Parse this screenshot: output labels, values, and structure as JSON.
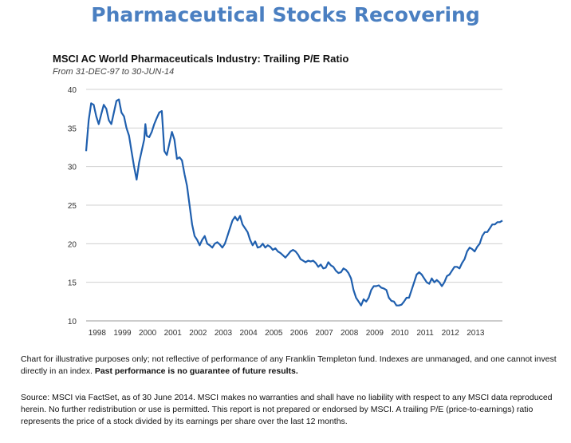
{
  "header": {
    "title": "Pharmaceutical Stocks Recovering"
  },
  "chart_data": {
    "type": "line",
    "title": "MSCI AC World Pharmaceuticals Industry: Trailing P/E Ratio",
    "subtitle": "From 31-DEC-97 to 30-JUN-14",
    "xlabel": "",
    "ylabel": "",
    "ylim": [
      10,
      40
    ],
    "yticks": [
      10,
      15,
      20,
      25,
      30,
      35,
      40
    ],
    "xlim": [
      1997.5,
      2014.5
    ],
    "xtick_labels": [
      "1998",
      "1999",
      "2000",
      "2001",
      "2002",
      "2003",
      "2004",
      "2005",
      "2006",
      "2007",
      "2008",
      "2009",
      "2010",
      "2011",
      "2012",
      "2013"
    ],
    "grid": "horizontal",
    "line_color": "#1f5fae",
    "series": [
      {
        "x": [
          1998.0,
          1998.1,
          1998.2,
          1998.3,
          1998.4,
          1998.5,
          1998.6,
          1998.7,
          1998.8,
          1998.9,
          1999.0,
          1999.1,
          1999.2,
          1999.3,
          1999.4,
          1999.5,
          1999.6,
          1999.7,
          1999.8,
          1999.9,
          2000.0,
          2000.1,
          2000.2,
          2000.3,
          2000.35,
          2000.4,
          2000.5,
          2000.6,
          2000.7,
          2000.8,
          2000.9,
          2001.0,
          2001.1,
          2001.2,
          2001.3,
          2001.4,
          2001.5,
          2001.6,
          2001.7,
          2001.8,
          2001.9,
          2002.0,
          2002.1,
          2002.2,
          2002.3,
          2002.4,
          2002.5,
          2002.6,
          2002.7,
          2002.8,
          2002.9,
          2003.0,
          2003.1,
          2003.2,
          2003.3,
          2003.4,
          2003.5,
          2003.6,
          2003.7,
          2003.8,
          2003.9,
          2004.0,
          2004.1,
          2004.2,
          2004.3,
          2004.4,
          2004.5,
          2004.6,
          2004.7,
          2004.8,
          2004.9,
          2005.0,
          2005.1,
          2005.2,
          2005.3,
          2005.4,
          2005.5,
          2005.6,
          2005.7,
          2005.8,
          2005.9,
          2006.0,
          2006.1,
          2006.2,
          2006.3,
          2006.4,
          2006.5,
          2006.6,
          2006.7,
          2006.8,
          2006.9,
          2007.0,
          2007.1,
          2007.2,
          2007.3,
          2007.4,
          2007.5,
          2007.6,
          2007.7,
          2007.8,
          2007.9,
          2008.0,
          2008.1,
          2008.2,
          2008.3,
          2008.4,
          2008.5,
          2008.6,
          2008.7,
          2008.8,
          2008.9,
          2009.0,
          2009.1,
          2009.2,
          2009.3,
          2009.4,
          2009.5,
          2009.6,
          2009.7,
          2009.8,
          2009.9,
          2010.0,
          2010.1,
          2010.2,
          2010.3,
          2010.4,
          2010.5,
          2010.6,
          2010.7,
          2010.8,
          2010.9,
          2011.0,
          2011.1,
          2011.2,
          2011.3,
          2011.4,
          2011.5,
          2011.6,
          2011.7,
          2011.8,
          2011.9,
          2012.0,
          2012.1,
          2012.2,
          2012.3,
          2012.4,
          2012.5,
          2012.6,
          2012.7,
          2012.8,
          2012.9,
          2013.0,
          2013.1,
          2013.2,
          2013.3,
          2013.4,
          2013.5,
          2013.6,
          2013.7,
          2013.8,
          2013.9,
          2014.0,
          2014.1,
          2014.2,
          2014.3,
          2014.4,
          2014.5
        ],
        "y": [
          32.0,
          36.0,
          38.2,
          38.0,
          36.5,
          35.5,
          36.8,
          38.0,
          37.5,
          36.0,
          35.5,
          37.0,
          38.5,
          38.7,
          37.0,
          36.5,
          35.0,
          34.0,
          32.0,
          30.0,
          28.3,
          30.5,
          32.0,
          33.5,
          35.5,
          34.0,
          33.8,
          34.5,
          35.5,
          36.3,
          37.0,
          37.2,
          32.0,
          31.5,
          33.0,
          34.5,
          33.5,
          31.0,
          31.2,
          30.8,
          29.0,
          27.5,
          25.0,
          22.5,
          21.0,
          20.5,
          19.8,
          20.5,
          21.0,
          20.0,
          19.8,
          19.5,
          20.0,
          20.2,
          19.9,
          19.5,
          20.0,
          21.0,
          22.0,
          23.0,
          23.5,
          23.0,
          23.6,
          22.5,
          22.0,
          21.5,
          20.5,
          19.8,
          20.3,
          19.5,
          19.6,
          20.0,
          19.5,
          19.8,
          19.6,
          19.2,
          19.4,
          19.0,
          18.8,
          18.5,
          18.2,
          18.6,
          19.0,
          19.2,
          19.0,
          18.6,
          18.0,
          17.8,
          17.6,
          17.8,
          17.7,
          17.8,
          17.5,
          17.0,
          17.3,
          16.8,
          16.9,
          17.6,
          17.2,
          17.0,
          16.5,
          16.2,
          16.3,
          16.8,
          16.6,
          16.2,
          15.5,
          14.0,
          13.0,
          12.5,
          12.0,
          12.8,
          12.5,
          13.0,
          14.0,
          14.5,
          14.5,
          14.6,
          14.3,
          14.2,
          14.0,
          13.0,
          12.6,
          12.5,
          12.0,
          12.0,
          12.1,
          12.5,
          13.0,
          13.0,
          14.0,
          15.0,
          16.0,
          16.3,
          16.0,
          15.5,
          15.0,
          14.8,
          15.5,
          15.0,
          15.3,
          15.0,
          14.5,
          15.0,
          15.8,
          16.0,
          16.5,
          17.0,
          17.0,
          16.8,
          17.5,
          18.0,
          19.0,
          19.5,
          19.3,
          19.0,
          19.6,
          20.0,
          21.0,
          21.5,
          21.5,
          22.0,
          22.5,
          22.5,
          22.8,
          22.8,
          23.0
        ]
      }
    ]
  },
  "footnote": {
    "text": "Chart for illustrative purposes only; not reflective of performance of any Franklin Templeton fund. Indexes are unmanaged, and one cannot invest directly in an index.",
    "bold_text": "Past performance is no guarantee of future results."
  },
  "source": {
    "text": "Source:  MSCI via FactSet, as of 30 June 2014. MSCI makes no warranties and shall have no liability with respect to  any MSCI data reproduced herein. No further redistribution or use is permitted. This report is not prepared or endorsed by MSCI. A trailing P/E (price-to-earnings) ratio represents the price of a stock divided by its earnings per share over the  last 12 months."
  }
}
